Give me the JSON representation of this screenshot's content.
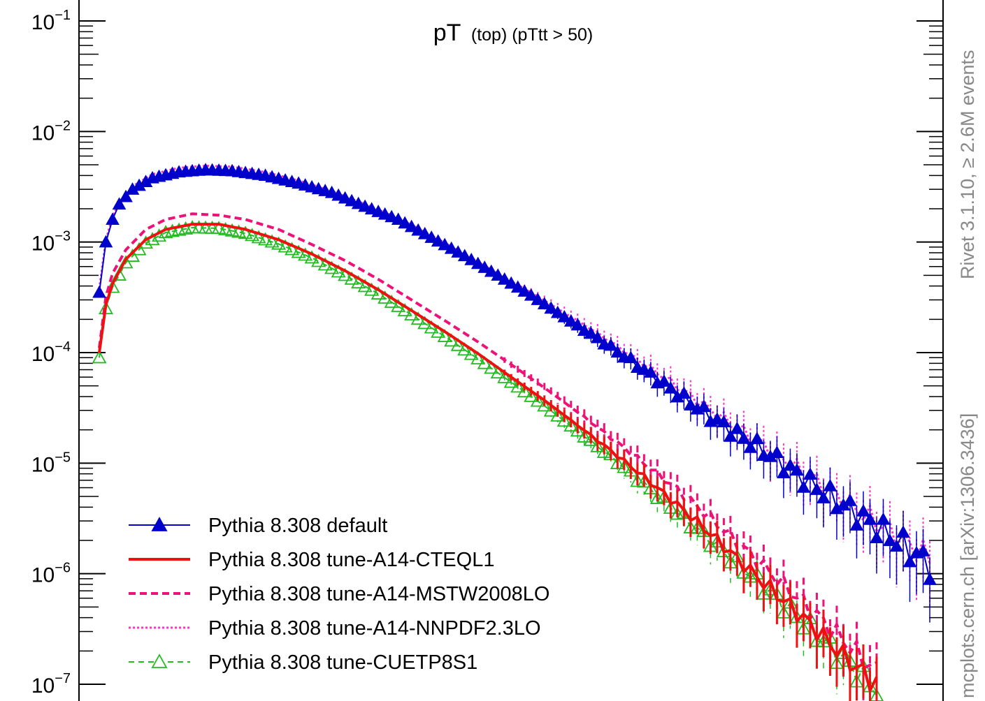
{
  "chart_data": {
    "type": "line",
    "title_main": "pT",
    "title_sub": "(top) (pTtt > 50)",
    "side_label_top": "Rivet 3.1.10, ≥ 2.6M events",
    "side_label_bottom": "mcplots.cern.ch [arXiv:1306.3436]",
    "y_scale": "log",
    "ylim": [
      1e-07,
      0.1
    ],
    "y_ticks": [
      {
        "value": 0.1,
        "base": "10",
        "exp": "−1"
      },
      {
        "value": 0.01,
        "base": "10",
        "exp": "−2"
      },
      {
        "value": 0.001,
        "base": "10",
        "exp": "−3"
      },
      {
        "value": 0.0001,
        "base": "10",
        "exp": "−4"
      },
      {
        "value": 1e-05,
        "base": "10",
        "exp": "−5"
      },
      {
        "value": 1e-06,
        "base": "10",
        "exp": "−6"
      },
      {
        "value": 1e-07,
        "base": "10",
        "exp": "−7"
      }
    ],
    "xlim": [
      0,
      100
    ],
    "legend_position": "bottom-left",
    "grid": false,
    "series": [
      {
        "name": "Pythia 8.308 default",
        "color": "#0000cc",
        "style": "solid-filled-triangle",
        "anchors": [
          [
            0,
            0.00035
          ],
          [
            1,
            0.001
          ],
          [
            2,
            0.0016
          ],
          [
            3,
            0.0022
          ],
          [
            5,
            0.003
          ],
          [
            8,
            0.0038
          ],
          [
            12,
            0.0043
          ],
          [
            16,
            0.0045
          ],
          [
            20,
            0.0044
          ],
          [
            25,
            0.004
          ],
          [
            30,
            0.0034
          ],
          [
            35,
            0.0028
          ],
          [
            40,
            0.0021
          ],
          [
            45,
            0.0016
          ],
          [
            50,
            0.0011
          ],
          [
            55,
            0.00075
          ],
          [
            60,
            0.0005
          ],
          [
            65,
            0.00033
          ],
          [
            70,
            0.00021
          ],
          [
            75,
            0.000135
          ],
          [
            80,
            8.5e-05
          ],
          [
            85,
            5.2e-05
          ],
          [
            90,
            3.2e-05
          ],
          [
            95,
            2e-05
          ],
          [
            100,
            1.3e-05
          ],
          [
            105,
            8e-06
          ],
          [
            110,
            5e-06
          ],
          [
            115,
            3.2e-06
          ],
          [
            120,
            2e-06
          ],
          [
            125,
            1.2e-06
          ]
        ]
      },
      {
        "name": "Pythia 8.308 tune-A14-CTEQL1",
        "color": "#ee1111",
        "style": "solid-thick",
        "anchors": [
          [
            0,
            0.0001
          ],
          [
            1,
            0.00027
          ],
          [
            2,
            0.00042
          ],
          [
            4,
            0.0007
          ],
          [
            7,
            0.00105
          ],
          [
            10,
            0.0013
          ],
          [
            14,
            0.00145
          ],
          [
            18,
            0.00145
          ],
          [
            22,
            0.0013
          ],
          [
            27,
            0.00105
          ],
          [
            32,
            0.00078
          ],
          [
            37,
            0.00055
          ],
          [
            42,
            0.00037
          ],
          [
            47,
            0.00024
          ],
          [
            52,
            0.000155
          ],
          [
            57,
            9.8e-05
          ],
          [
            62,
            6e-05
          ],
          [
            67,
            3.7e-05
          ],
          [
            72,
            2.2e-05
          ],
          [
            77,
            1.3e-05
          ],
          [
            82,
            7.5e-06
          ],
          [
            87,
            4.2e-06
          ],
          [
            92,
            2.3e-06
          ],
          [
            97,
            1.2e-06
          ],
          [
            102,
            6.5e-07
          ],
          [
            107,
            3.5e-07
          ],
          [
            112,
            1.8e-07
          ],
          [
            117,
            1e-07
          ]
        ]
      },
      {
        "name": "Pythia 8.308 tune-A14-MSTW2008LO",
        "color": "#ee1177",
        "style": "dashed-thick",
        "anchors": [
          [
            0,
            0.00011
          ],
          [
            1,
            0.00032
          ],
          [
            2,
            0.00052
          ],
          [
            4,
            0.00085
          ],
          [
            7,
            0.0013
          ],
          [
            10,
            0.0016
          ],
          [
            14,
            0.0018
          ],
          [
            18,
            0.00175
          ],
          [
            22,
            0.0016
          ],
          [
            27,
            0.0013
          ],
          [
            32,
            0.00095
          ],
          [
            37,
            0.00068
          ],
          [
            42,
            0.00046
          ],
          [
            47,
            0.0003
          ],
          [
            52,
            0.000195
          ],
          [
            57,
            0.000125
          ],
          [
            62,
            7.8e-05
          ],
          [
            67,
            4.8e-05
          ],
          [
            72,
            2.9e-05
          ],
          [
            77,
            1.7e-05
          ],
          [
            82,
            1e-05
          ],
          [
            87,
            5.8e-06
          ],
          [
            92,
            3.2e-06
          ],
          [
            97,
            1.7e-06
          ],
          [
            102,
            9e-07
          ],
          [
            107,
            4.8e-07
          ],
          [
            112,
            2.5e-07
          ],
          [
            117,
            1.3e-07
          ]
        ]
      },
      {
        "name": "Pythia 8.308 tune-A14-NNPDF2.3LO",
        "color": "#ff33cc",
        "style": "dotted",
        "anchors": [
          [
            0,
            0.00038
          ],
          [
            1,
            0.00105
          ],
          [
            2,
            0.0017
          ],
          [
            3,
            0.0023
          ],
          [
            5,
            0.0032
          ],
          [
            8,
            0.0041
          ],
          [
            12,
            0.0047
          ],
          [
            16,
            0.0049
          ],
          [
            20,
            0.0048
          ],
          [
            25,
            0.0043
          ],
          [
            30,
            0.0036
          ],
          [
            35,
            0.0029
          ],
          [
            40,
            0.0022
          ],
          [
            45,
            0.00165
          ],
          [
            50,
            0.00115
          ],
          [
            55,
            0.00078
          ],
          [
            60,
            0.00052
          ],
          [
            65,
            0.00035
          ],
          [
            70,
            0.00023
          ],
          [
            75,
            0.00015
          ],
          [
            80,
            9.5e-05
          ],
          [
            85,
            6e-05
          ],
          [
            90,
            3.7e-05
          ],
          [
            95,
            2.3e-05
          ],
          [
            100,
            1.45e-05
          ],
          [
            105,
            9e-06
          ],
          [
            110,
            5.6e-06
          ],
          [
            115,
            3.5e-06
          ],
          [
            120,
            2.2e-06
          ],
          [
            125,
            1.4e-06
          ]
        ]
      },
      {
        "name": "Pythia 8.308 tune-CUETP8S1",
        "color": "#22bb22",
        "style": "dashed-open-triangle",
        "anchors": [
          [
            0,
            9e-05
          ],
          [
            1,
            0.00025
          ],
          [
            2,
            0.00039
          ],
          [
            4,
            0.00065
          ],
          [
            7,
            0.00098
          ],
          [
            10,
            0.00122
          ],
          [
            14,
            0.00135
          ],
          [
            18,
            0.00133
          ],
          [
            22,
            0.0012
          ],
          [
            27,
            0.00096
          ],
          [
            32,
            0.00072
          ],
          [
            37,
            0.0005
          ],
          [
            42,
            0.00034
          ],
          [
            47,
            0.00022
          ],
          [
            52,
            0.00014
          ],
          [
            57,
            8.8e-05
          ],
          [
            62,
            5.4e-05
          ],
          [
            67,
            3.3e-05
          ],
          [
            72,
            1.95e-05
          ],
          [
            77,
            1.15e-05
          ],
          [
            82,
            6.5e-06
          ],
          [
            87,
            3.6e-06
          ],
          [
            92,
            2e-06
          ],
          [
            97,
            1.1e-06
          ],
          [
            102,
            6e-07
          ],
          [
            107,
            3.2e-07
          ],
          [
            112,
            1.7e-07
          ],
          [
            117,
            9e-08
          ]
        ]
      }
    ]
  }
}
